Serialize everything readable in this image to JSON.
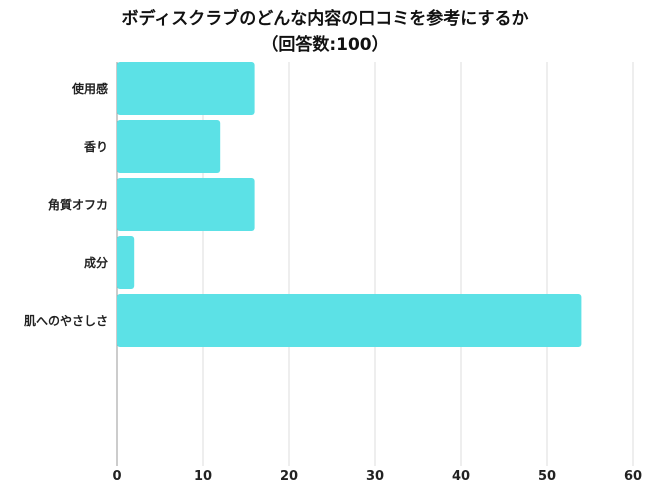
{
  "chart_data": {
    "type": "bar",
    "orientation": "horizontal",
    "title": "ボディスクラブのどんな内容の口コミを参考にするか",
    "subtitle": "（回答数:100）",
    "categories": [
      "使用感",
      "香り",
      "角質オフカ",
      "成分",
      "肌へのやさしさ"
    ],
    "values": [
      16,
      12,
      16,
      2,
      54
    ],
    "xlim": [
      0,
      60
    ],
    "xticks": [
      0,
      10,
      20,
      30,
      40,
      50,
      60
    ],
    "grid": true,
    "bar_color": "#5ce1e6",
    "xlabel": "",
    "ylabel": ""
  }
}
